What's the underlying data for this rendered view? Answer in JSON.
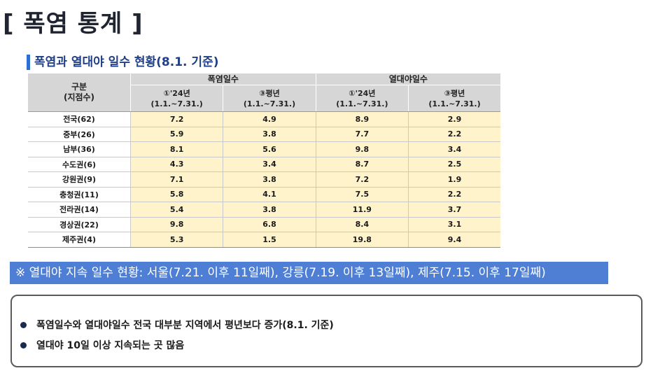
{
  "page_title": "[ 폭염 통계 ]",
  "section_title": "폭염과 열대야 일수 현황(8.1. 기준)",
  "table": {
    "row_header_line1": "구분",
    "row_header_line2": "(지점수)",
    "groups": [
      "폭염일수",
      "열대야일수"
    ],
    "sub_headers": [
      {
        "line1": "①'24년",
        "line2": "(1.1.~7.31.)"
      },
      {
        "line1": "③평년",
        "line2": "(1.1.~7.31.)"
      },
      {
        "line1": "①'24년",
        "line2": "(1.1.~7.31.)"
      },
      {
        "line1": "③평년",
        "line2": "(1.1.~7.31.)"
      }
    ],
    "rows": [
      {
        "region": "전국(62)",
        "values": [
          "7.2",
          "4.9",
          "8.9",
          "2.9"
        ]
      },
      {
        "region": "중부(26)",
        "values": [
          "5.9",
          "3.8",
          "7.7",
          "2.2"
        ]
      },
      {
        "region": "남부(36)",
        "values": [
          "8.1",
          "5.6",
          "9.8",
          "3.4"
        ]
      },
      {
        "region": "수도권(6)",
        "values": [
          "4.3",
          "3.4",
          "8.7",
          "2.5"
        ]
      },
      {
        "region": "강원권(9)",
        "values": [
          "7.1",
          "3.8",
          "7.2",
          "1.9"
        ]
      },
      {
        "region": "충청권(11)",
        "values": [
          "5.8",
          "4.1",
          "7.5",
          "2.2"
        ]
      },
      {
        "region": "전라권(14)",
        "values": [
          "5.4",
          "3.8",
          "11.9",
          "3.7"
        ]
      },
      {
        "region": "경상권(22)",
        "values": [
          "9.8",
          "6.8",
          "8.4",
          "3.1"
        ]
      },
      {
        "region": "제주권(4)",
        "values": [
          "5.3",
          "1.5",
          "19.8",
          "9.4"
        ]
      }
    ]
  },
  "note": "※ 열대야 지속 일수 현황: 서울(7.21. 이후 11일째), 강릉(7.19. 이후 13일째), 제주(7.15. 이후 17일째)",
  "summary": [
    "폭염일수와 열대야일수 전국 대부분 지역에서 평년보다 증가(8.1. 기준)",
    "열대야 10일 이상 지속되는 곳 많음"
  ],
  "colors": {
    "accent": "#2f6fd3",
    "note_bg": "#4f7fd4",
    "cell_highlight": "#fff3cc",
    "header_bg": "#d6d6d6"
  }
}
